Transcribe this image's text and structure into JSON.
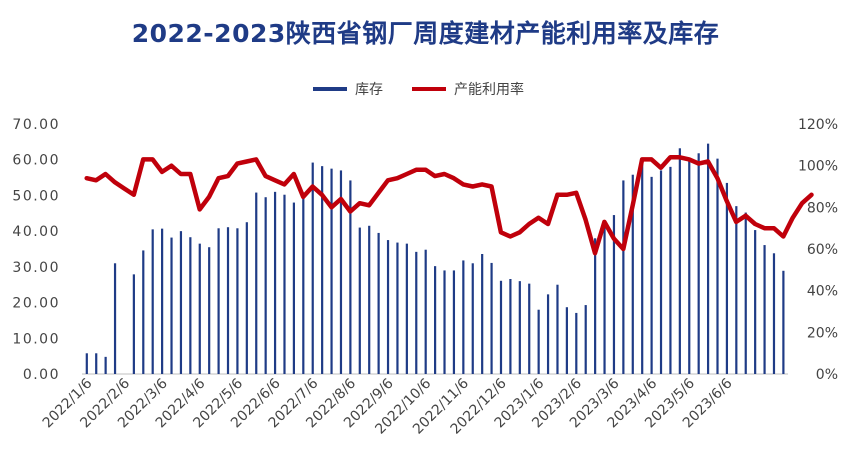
{
  "chart_data": {
    "type": "bar+line",
    "title": "2022-2023陕西省钢厂周度建材产能利用率及库存",
    "y_left": {
      "min": 0,
      "max": 70,
      "ticks": [
        "0.00",
        "10.00",
        "20.00",
        "30.00",
        "40.00",
        "50.00",
        "60.00",
        "70.00"
      ]
    },
    "y_right": {
      "min": 0,
      "max": 120,
      "ticks": [
        "0%",
        "20%",
        "40%",
        "60%",
        "80%",
        "100%",
        "120%"
      ]
    },
    "x_tick_labels": [
      "2022/1/6",
      "2022/2/6",
      "2022/3/6",
      "2022/4/6",
      "2022/5/6",
      "2022/6/6",
      "2022/7/6",
      "2022/8/6",
      "2022/9/6",
      "2022/10/6",
      "2022/11/6",
      "2022/12/6",
      "2023/1/6",
      "2023/2/6",
      "2023/3/6",
      "2023/4/6",
      "2023/5/6",
      "2023/6/6"
    ],
    "x_tick_positions": [
      0,
      4,
      8,
      12,
      16,
      20,
      24,
      28,
      32,
      36,
      40,
      44,
      48,
      52,
      56,
      60,
      64,
      68
    ],
    "legend_position": "top-center",
    "series": [
      {
        "name": "库存",
        "type": "bar",
        "color": "#1f3b86",
        "values": [
          5.8,
          5.8,
          4.8,
          31.0,
          0,
          27.9,
          34.6,
          40.5,
          40.7,
          38.2,
          40.0,
          38.3,
          36.5,
          35.5,
          40.8,
          41.1,
          40.8,
          42.5,
          50.8,
          49.5,
          51.0,
          50.2,
          48.0,
          49.5,
          59.2,
          58.2,
          57.5,
          57.0,
          54.2,
          41.0,
          41.5,
          39.5,
          37.5,
          36.8,
          36.5,
          34.2,
          34.8,
          30.2,
          29.0,
          29.0,
          31.8,
          31.0,
          33.6,
          31.1,
          26.1,
          26.6,
          26.0,
          25.3,
          18.0,
          22.3,
          25.0,
          18.7,
          17.1,
          19.3,
          38.0,
          41.0,
          44.5,
          54.2,
          55.8,
          60.5,
          55.2,
          57.0,
          58.0,
          63.2,
          59.5,
          61.8,
          64.5,
          60.3,
          53.5,
          47.0,
          45.2,
          40.3,
          36.1,
          33.8,
          28.9
        ]
      },
      {
        "name": "产能利用率",
        "type": "line",
        "color": "#c0000b",
        "axis": "right",
        "values": [
          94,
          93,
          96,
          92,
          89,
          86,
          103,
          103,
          97,
          100,
          96,
          96,
          79,
          85,
          94,
          95,
          101,
          102,
          103,
          95,
          93,
          91,
          96,
          85,
          90,
          86,
          80,
          84,
          78,
          82,
          81,
          87,
          93,
          94,
          96,
          98,
          98,
          95,
          96,
          94,
          91,
          90,
          91,
          90,
          68,
          66,
          68,
          72,
          75,
          72,
          86,
          86,
          87,
          74,
          58,
          73,
          65,
          60,
          81,
          103,
          103,
          99,
          104,
          104,
          103,
          101,
          102,
          94,
          83,
          73,
          76,
          72,
          70,
          70,
          66,
          75,
          82,
          86
        ]
      }
    ]
  }
}
